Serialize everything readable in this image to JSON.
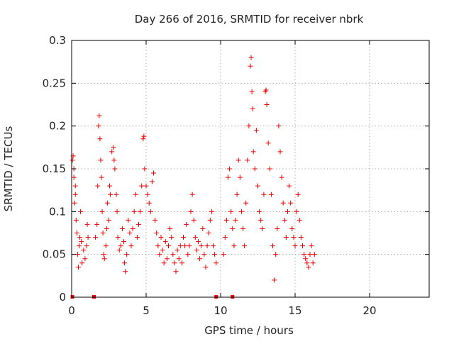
{
  "chart_data": {
    "type": "scatter",
    "title": "Day 266 of 2016, SRMTID for receiver nbrk",
    "xlabel": "GPS time / hours",
    "ylabel": "SRMTID / TECUs",
    "xlim": [
      0,
      24
    ],
    "ylim": [
      0,
      0.3
    ],
    "xticks": [
      0,
      5,
      10,
      15,
      20
    ],
    "xtick_labels": [
      "0",
      "5",
      "10",
      "15",
      "20"
    ],
    "yticks": [
      0,
      0.05,
      0.1,
      0.15,
      0.2,
      0.25,
      0.3
    ],
    "ytick_labels": [
      "0",
      "0.05",
      "0.1",
      "0.15",
      "0.2",
      "0.25",
      "0.3"
    ],
    "grid": true,
    "marker": "plus",
    "series_color": "#ee0000",
    "data_gap_markers_x": [
      0.05,
      1.5,
      9.7,
      10.8
    ],
    "series": [
      {
        "name": "SRMTID",
        "points": [
          [
            0.05,
            0.16
          ],
          [
            0.1,
            0.165
          ],
          [
            0.15,
            0.14
          ],
          [
            0.2,
            0.11
          ],
          [
            0.25,
            0.12
          ],
          [
            0.3,
            0.09
          ],
          [
            0.35,
            0.075
          ],
          [
            0.4,
            0.05
          ],
          [
            0.45,
            0.035
          ],
          [
            0.5,
            0.06
          ],
          [
            0.55,
            0.07
          ],
          [
            0.6,
            0.1
          ],
          [
            0.65,
            0.065
          ],
          [
            0.7,
            0.04
          ],
          [
            0.8,
            0.055
          ],
          [
            0.9,
            0.045
          ],
          [
            1.0,
            0.06
          ],
          [
            1.05,
            0.085
          ],
          [
            1.1,
            0.07
          ],
          [
            0.25,
            0.13
          ],
          [
            0.15,
            0.15
          ],
          [
            1.6,
            0.07
          ],
          [
            1.7,
            0.085
          ],
          [
            1.75,
            0.13
          ],
          [
            1.8,
            0.2
          ],
          [
            1.85,
            0.212
          ],
          [
            1.9,
            0.185
          ],
          [
            1.95,
            0.16
          ],
          [
            2.0,
            0.14
          ],
          [
            2.05,
            0.1
          ],
          [
            2.1,
            0.075
          ],
          [
            2.15,
            0.05
          ],
          [
            2.2,
            0.045
          ],
          [
            2.3,
            0.06
          ],
          [
            2.35,
            0.08
          ],
          [
            2.4,
            0.11
          ],
          [
            2.5,
            0.09
          ],
          [
            2.55,
            0.13
          ],
          [
            2.6,
            0.12
          ],
          [
            2.7,
            0.17
          ],
          [
            2.8,
            0.175
          ],
          [
            2.85,
            0.16
          ],
          [
            2.9,
            0.15
          ],
          [
            3.0,
            0.12
          ],
          [
            3.05,
            0.1
          ],
          [
            3.1,
            0.07
          ],
          [
            3.2,
            0.055
          ],
          [
            3.3,
            0.06
          ],
          [
            3.4,
            0.08
          ],
          [
            3.5,
            0.065
          ],
          [
            3.55,
            0.04
          ],
          [
            3.6,
            0.03
          ],
          [
            3.7,
            0.05
          ],
          [
            3.8,
            0.09
          ],
          [
            3.9,
            0.075
          ],
          [
            4.0,
            0.06
          ],
          [
            4.1,
            0.08
          ],
          [
            4.2,
            0.1
          ],
          [
            4.3,
            0.12
          ],
          [
            4.4,
            0.07
          ],
          [
            4.5,
            0.085
          ],
          [
            4.6,
            0.1
          ],
          [
            4.7,
            0.13
          ],
          [
            4.8,
            0.185
          ],
          [
            4.85,
            0.188
          ],
          [
            4.9,
            0.15
          ],
          [
            5.0,
            0.13
          ],
          [
            5.1,
            0.12
          ],
          [
            5.2,
            0.11
          ],
          [
            5.3,
            0.1
          ],
          [
            5.4,
            0.135
          ],
          [
            5.5,
            0.145
          ],
          [
            5.6,
            0.09
          ],
          [
            5.7,
            0.075
          ],
          [
            5.8,
            0.06
          ],
          [
            5.9,
            0.05
          ],
          [
            6.0,
            0.07
          ],
          [
            6.1,
            0.055
          ],
          [
            6.2,
            0.04
          ],
          [
            6.3,
            0.065
          ],
          [
            6.4,
            0.045
          ],
          [
            6.5,
            0.06
          ],
          [
            6.6,
            0.08
          ],
          [
            6.7,
            0.07
          ],
          [
            6.8,
            0.05
          ],
          [
            6.9,
            0.04
          ],
          [
            7.0,
            0.03
          ],
          [
            7.1,
            0.055
          ],
          [
            7.2,
            0.045
          ],
          [
            7.3,
            0.06
          ],
          [
            7.4,
            0.04
          ],
          [
            7.5,
            0.07
          ],
          [
            7.6,
            0.06
          ],
          [
            7.7,
            0.085
          ],
          [
            7.8,
            0.05
          ],
          [
            7.9,
            0.06
          ],
          [
            8.0,
            0.1
          ],
          [
            8.1,
            0.12
          ],
          [
            8.2,
            0.09
          ],
          [
            8.3,
            0.07
          ],
          [
            8.4,
            0.055
          ],
          [
            8.5,
            0.065
          ],
          [
            8.6,
            0.045
          ],
          [
            8.7,
            0.06
          ],
          [
            8.8,
            0.08
          ],
          [
            8.9,
            0.05
          ],
          [
            9.0,
            0.035
          ],
          [
            9.1,
            0.06
          ],
          [
            9.2,
            0.075
          ],
          [
            9.3,
            0.09
          ],
          [
            9.4,
            0.1
          ],
          [
            9.5,
            0.06
          ],
          [
            9.6,
            0.05
          ],
          [
            9.7,
            0.04
          ],
          [
            10.2,
            0.05
          ],
          [
            10.3,
            0.07
          ],
          [
            10.4,
            0.09
          ],
          [
            10.5,
            0.14
          ],
          [
            10.6,
            0.15
          ],
          [
            10.7,
            0.1
          ],
          [
            10.8,
            0.08
          ],
          [
            10.9,
            0.06
          ],
          [
            11.0,
            0.09
          ],
          [
            11.1,
            0.12
          ],
          [
            11.2,
            0.16
          ],
          [
            11.3,
            0.14
          ],
          [
            11.4,
            0.1
          ],
          [
            11.5,
            0.08
          ],
          [
            11.6,
            0.06
          ],
          [
            11.7,
            0.11
          ],
          [
            11.8,
            0.16
          ],
          [
            11.9,
            0.2
          ],
          [
            12.0,
            0.27
          ],
          [
            12.05,
            0.28
          ],
          [
            12.1,
            0.24
          ],
          [
            12.15,
            0.22
          ],
          [
            12.2,
            0.17
          ],
          [
            12.3,
            0.15
          ],
          [
            12.4,
            0.195
          ],
          [
            12.5,
            0.13
          ],
          [
            12.6,
            0.1
          ],
          [
            12.7,
            0.09
          ],
          [
            12.8,
            0.08
          ],
          [
            12.9,
            0.12
          ],
          [
            13.0,
            0.24
          ],
          [
            13.05,
            0.242
          ],
          [
            13.1,
            0.225
          ],
          [
            13.2,
            0.18
          ],
          [
            13.3,
            0.15
          ],
          [
            13.4,
            0.12
          ],
          [
            13.5,
            0.06
          ],
          [
            13.6,
            0.02
          ],
          [
            13.7,
            0.05
          ],
          [
            13.8,
            0.08
          ],
          [
            13.9,
            0.2
          ],
          [
            14.0,
            0.17
          ],
          [
            14.1,
            0.14
          ],
          [
            14.2,
            0.11
          ],
          [
            14.3,
            0.09
          ],
          [
            14.4,
            0.07
          ],
          [
            14.5,
            0.1
          ],
          [
            14.6,
            0.13
          ],
          [
            14.7,
            0.11
          ],
          [
            14.8,
            0.08
          ],
          [
            14.9,
            0.07
          ],
          [
            15.0,
            0.06
          ],
          [
            15.1,
            0.1
          ],
          [
            15.2,
            0.12
          ],
          [
            15.3,
            0.09
          ],
          [
            15.4,
            0.07
          ],
          [
            15.5,
            0.06
          ],
          [
            15.6,
            0.05
          ],
          [
            15.7,
            0.045
          ],
          [
            15.8,
            0.04
          ],
          [
            15.9,
            0.035
          ],
          [
            16.0,
            0.05
          ],
          [
            16.1,
            0.06
          ],
          [
            16.2,
            0.04
          ],
          [
            16.3,
            0.05
          ]
        ]
      }
    ]
  }
}
